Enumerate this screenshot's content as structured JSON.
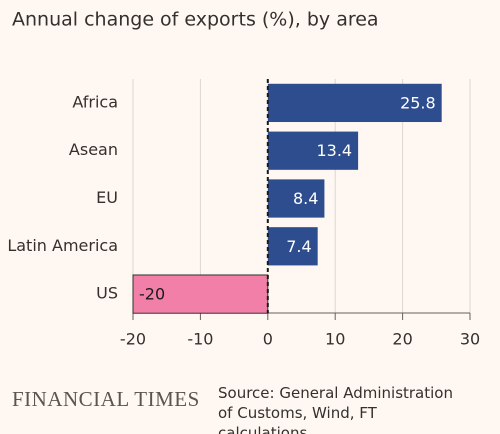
{
  "chart_data": {
    "type": "bar",
    "orientation": "horizontal",
    "title": "Annual change of exports (%), by area",
    "categories": [
      "Africa",
      "Asean",
      "EU",
      "Latin America",
      "US"
    ],
    "values": [
      25.8,
      13.4,
      8.4,
      7.4,
      -20
    ],
    "positive_color": "#2d4d8e",
    "negative_color": "#f17fa7",
    "xlim": [
      -20,
      30
    ],
    "xticks": [
      -20,
      -10,
      0,
      10,
      20,
      30
    ],
    "grid": true,
    "branding": "FINANCIAL TIMES",
    "source": "Source: General Administration of Customs, Wind, FT calculations"
  }
}
